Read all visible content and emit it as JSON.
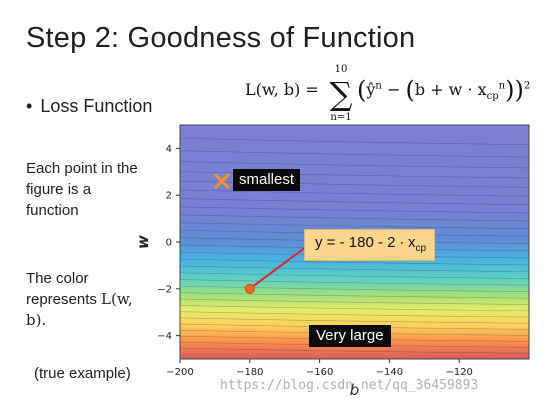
{
  "slide": {
    "title": "Step 2: Goodness of Function",
    "bullet": "Loss Function",
    "side_text_1": "Each point in the figure is a function",
    "side_text_2_prefix": "The color represents",
    "side_text_2_math": "L(w, b).",
    "side_text_3": "(true example)",
    "watermark": "https://blog.csdn.net/qq_36459893"
  },
  "formula": {
    "lhs": "L(w, b) =",
    "sum_upper": "10",
    "sum_lower": "n=1",
    "sum_symbol": "∑",
    "rhs_hat_y": "ŷ",
    "rhs_sup_n": "n",
    "rhs_minus": "−",
    "rhs_b_plus_w": "b + w · x",
    "rhs_sub_cp": "cp",
    "rhs_sup_n2": "n",
    "rhs_square": "2"
  },
  "annotations": {
    "smallest": "smallest",
    "very_large": "Very large",
    "equation_prefix": "y = - 180 - 2 ∙ x",
    "equation_sub": "cp"
  },
  "chart_data": {
    "type": "heatmap",
    "title": "",
    "xlabel": "b",
    "ylabel": "w",
    "xlim": [
      -200,
      -100
    ],
    "ylim": [
      -5,
      5
    ],
    "x_ticks": [
      -200,
      -180,
      -160,
      -140,
      -120
    ],
    "y_ticks": [
      -4,
      -2,
      0,
      2,
      4
    ],
    "colormap": [
      "#d73027",
      "#fdae61",
      "#fee08b",
      "#a6d96a",
      "#66c2a5",
      "#5e8fd6",
      "#7b7fd4"
    ],
    "minimum_point": {
      "b": -188,
      "w": 2.6,
      "marker": "x",
      "color": "#f7941d"
    },
    "example_point": {
      "b": -180,
      "w": -2,
      "marker": "o",
      "color": "#f26522"
    },
    "example_line_to": {
      "b": -162,
      "w": 0
    }
  }
}
